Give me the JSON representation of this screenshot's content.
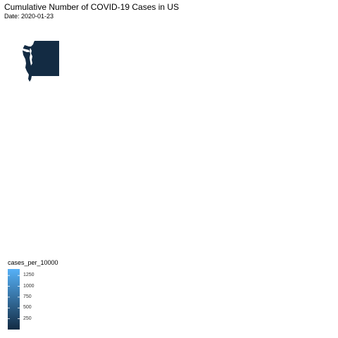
{
  "title": "Cumulative Number of COVID-19 Cases in US",
  "subtitle": "Date: 2020-01-23",
  "legend": {
    "title": "cases_per_10000",
    "ticks": [
      "1250",
      "1000",
      "750",
      "500",
      "250"
    ],
    "tick_values": [
      1250,
      1000,
      750,
      500,
      250
    ],
    "range": [
      0,
      1400
    ],
    "color_low": "#132B43",
    "color_high": "#56B1F7"
  },
  "chart_data": {
    "type": "map",
    "title": "Cumulative Number of COVID-19 Cases in US",
    "subtitle": "Date: 2020-01-23",
    "regions": [
      {
        "name": "Washington",
        "cases_per_10000": 0,
        "fill": "#132B43"
      }
    ],
    "legend_title": "cases_per_10000",
    "colorbar_ticks": [
      250,
      500,
      750,
      1000,
      1250
    ]
  }
}
